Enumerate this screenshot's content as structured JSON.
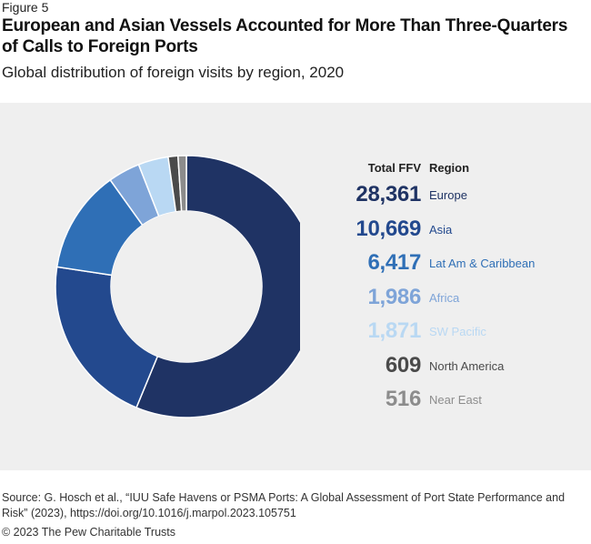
{
  "figure_label": "Figure 5",
  "title": "European and Asian Vessels Accounted for More Than Three-Quarters of Calls to Foreign Ports",
  "subtitle": "Global distribution of foreign visits by region, 2020",
  "table_headers": {
    "total": "Total FFV",
    "region": "Region"
  },
  "chart_data": {
    "type": "pie",
    "donut": true,
    "title": "European and Asian Vessels Accounted for More Than Three-Quarters of Calls to Foreign Ports",
    "subtitle": "Global distribution of foreign visits by region, 2020",
    "slices": [
      {
        "region": "Europe",
        "value": 28361,
        "value_label": "28,361",
        "color": "#1f3364"
      },
      {
        "region": "Asia",
        "value": 10669,
        "value_label": "10,669",
        "color": "#23498e"
      },
      {
        "region": "Lat Am & Caribbean",
        "value": 6417,
        "value_label": "6,417",
        "color": "#2f6fb6"
      },
      {
        "region": "Africa",
        "value": 1986,
        "value_label": "1,986",
        "color": "#7ea4d8"
      },
      {
        "region": "SW Pacific",
        "value": 1871,
        "value_label": "1,871",
        "color": "#b9d8f3"
      },
      {
        "region": "North America",
        "value": 609,
        "value_label": "609",
        "color": "#4a4a4a"
      },
      {
        "region": "Near East",
        "value": 516,
        "value_label": "516",
        "color": "#8c8c8c"
      }
    ],
    "legend_placement": "right"
  },
  "source": "Source: G. Hosch et al., “IUU Safe Havens or PSMA Ports: A Global Assessment of Port State Performance and Risk” (2023), https://doi.org/10.1016/j.marpol.2023.105751",
  "copyright": "© 2023 The Pew Charitable Trusts"
}
